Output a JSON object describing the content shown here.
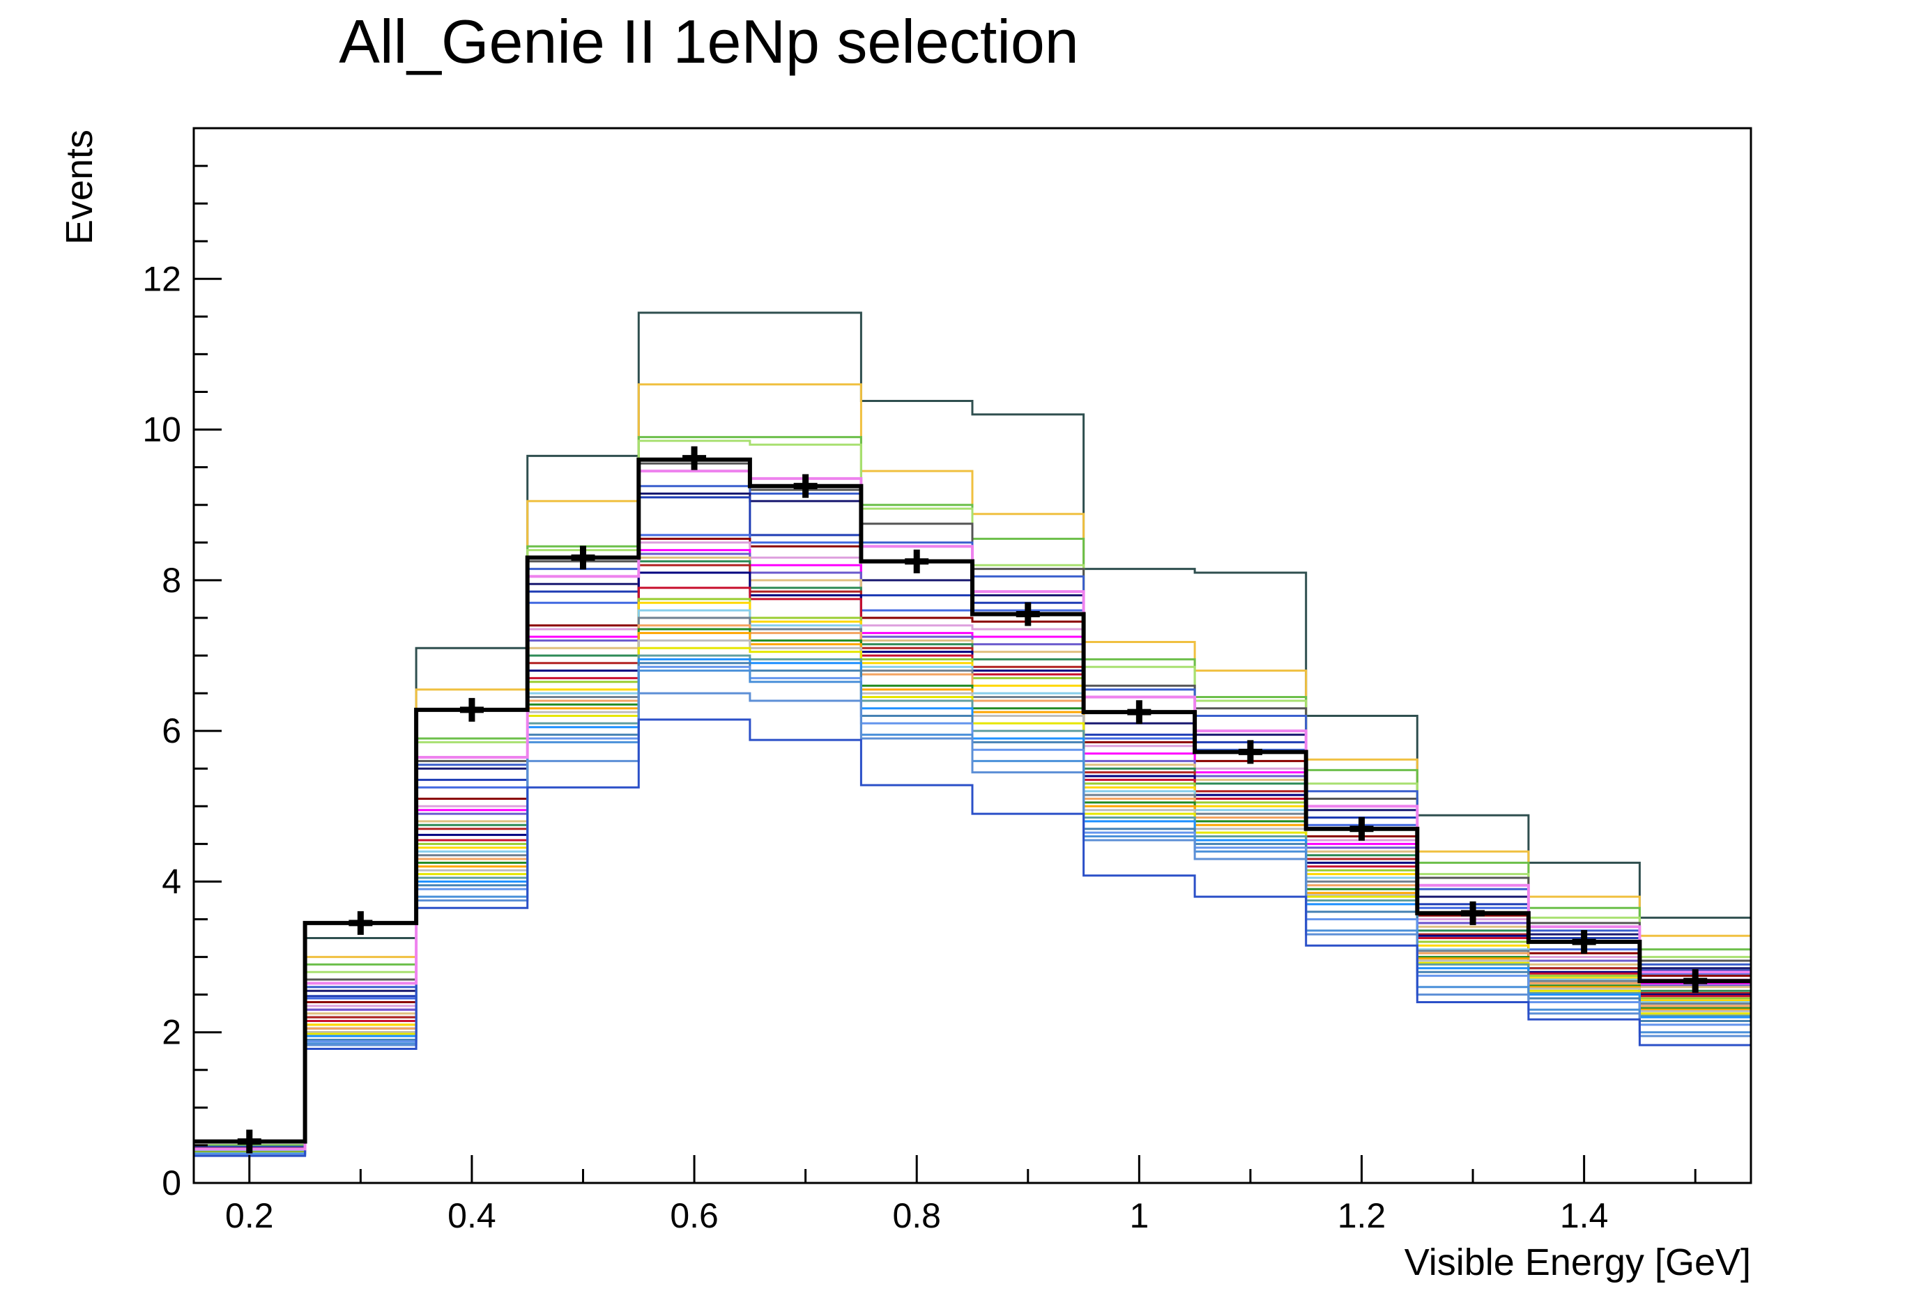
{
  "chart_data": {
    "type": "histogram",
    "title": "All_Genie II 1eNp selection",
    "xlabel": "Visible Energy [GeV]",
    "ylabel": "Events",
    "xlim": [
      0.15,
      1.55
    ],
    "ylim": [
      0,
      14
    ],
    "xticks": [
      {
        "value": 0.2,
        "label": "0.2"
      },
      {
        "value": 0.4,
        "label": "0.4"
      },
      {
        "value": 0.6,
        "label": "0.6"
      },
      {
        "value": 0.8,
        "label": "0.8"
      },
      {
        "value": 1.0,
        "label": "1"
      },
      {
        "value": 1.2,
        "label": "1.2"
      },
      {
        "value": 1.4,
        "label": "1.4"
      }
    ],
    "yticks": [
      {
        "value": 0,
        "label": "0"
      },
      {
        "value": 2,
        "label": "2"
      },
      {
        "value": 4,
        "label": "4"
      },
      {
        "value": 6,
        "label": "6"
      },
      {
        "value": 8,
        "label": "8"
      },
      {
        "value": 10,
        "label": "10"
      },
      {
        "value": 12,
        "label": "12"
      }
    ],
    "bin_edges": [
      0.15,
      0.25,
      0.35,
      0.45,
      0.55,
      0.65,
      0.75,
      0.85,
      0.95,
      1.05,
      1.15,
      1.25,
      1.35,
      1.45,
      1.55
    ],
    "cv": {
      "color": "#000000",
      "values": [
        0.55,
        3.45,
        6.28,
        8.3,
        9.6,
        9.25,
        8.25,
        7.55,
        6.25,
        5.72,
        4.7,
        3.58,
        3.2,
        2.68
      ]
    },
    "cv_points": {
      "color": "#000000",
      "x": [
        0.2,
        0.3,
        0.4,
        0.5,
        0.6,
        0.7,
        0.8,
        0.9,
        1.0,
        1.1,
        1.2,
        1.3,
        1.4,
        1.5
      ],
      "y": [
        0.55,
        3.45,
        6.28,
        8.3,
        9.62,
        9.25,
        8.25,
        7.55,
        6.25,
        5.72,
        4.7,
        3.58,
        3.2,
        2.68
      ]
    },
    "highlight": {
      "color": "#ee82ee",
      "values": [
        0.45,
        2.65,
        5.65,
        8.05,
        9.45,
        9.35,
        8.45,
        7.85,
        6.45,
        6.0,
        5.0,
        3.95,
        3.4,
        2.8
      ]
    },
    "universes": [
      {
        "color": "#2f4f4f",
        "values": [
          0.55,
          3.25,
          7.1,
          9.65,
          11.55,
          11.55,
          10.38,
          10.2,
          8.15,
          8.1,
          6.2,
          4.88,
          4.25,
          3.52
        ]
      },
      {
        "color": "#f0c040",
        "values": [
          0.5,
          3.0,
          6.55,
          9.05,
          10.6,
          10.6,
          9.45,
          8.88,
          7.18,
          6.8,
          5.62,
          4.4,
          3.8,
          3.28
        ]
      },
      {
        "color": "#6cbf4a",
        "values": [
          0.5,
          2.9,
          5.9,
          8.45,
          9.9,
          9.9,
          9.0,
          8.55,
          6.95,
          6.45,
          5.48,
          4.25,
          3.65,
          3.1
        ]
      },
      {
        "color": "#a8e070",
        "values": [
          0.48,
          2.8,
          5.85,
          8.4,
          9.85,
          9.8,
          8.95,
          8.2,
          6.85,
          6.4,
          5.3,
          4.1,
          3.52,
          3.0
        ]
      },
      {
        "color": "#555555",
        "values": [
          0.48,
          2.7,
          5.6,
          8.25,
          9.55,
          9.2,
          8.75,
          8.15,
          6.6,
          6.3,
          5.1,
          4.05,
          3.45,
          2.95
        ]
      },
      {
        "color": "#3a5fcd",
        "values": [
          0.48,
          2.6,
          5.55,
          8.15,
          9.25,
          9.15,
          8.5,
          8.05,
          6.55,
          6.2,
          5.2,
          3.9,
          3.35,
          2.9
        ]
      },
      {
        "color": "#191970",
        "values": [
          0.47,
          2.55,
          5.5,
          7.95,
          9.15,
          9.05,
          8.0,
          7.8,
          6.1,
          5.95,
          4.95,
          3.8,
          3.3,
          2.85
        ]
      },
      {
        "color": "#1e3cb4",
        "values": [
          0.47,
          2.48,
          5.35,
          7.85,
          9.1,
          8.6,
          7.8,
          7.7,
          5.95,
          5.85,
          4.85,
          3.7,
          3.25,
          2.82
        ]
      },
      {
        "color": "#4169e1",
        "values": [
          0.46,
          2.45,
          5.25,
          7.7,
          8.6,
          8.5,
          7.6,
          7.6,
          5.9,
          5.75,
          4.75,
          3.65,
          3.1,
          2.78
        ]
      },
      {
        "color": "#8b0000",
        "values": [
          0.46,
          2.4,
          5.1,
          7.4,
          8.55,
          8.45,
          7.5,
          7.45,
          5.85,
          5.6,
          4.6,
          3.55,
          3.05,
          2.75
        ]
      },
      {
        "color": "#dda0dd",
        "values": [
          0.45,
          2.35,
          5.0,
          7.35,
          8.5,
          8.3,
          7.4,
          7.35,
          5.8,
          5.5,
          4.55,
          3.5,
          3.0,
          2.7
        ]
      },
      {
        "color": "#ff00ff",
        "values": [
          0.45,
          2.3,
          4.95,
          7.25,
          8.4,
          8.2,
          7.3,
          7.25,
          5.7,
          5.45,
          4.5,
          3.45,
          2.95,
          2.65
        ]
      },
      {
        "color": "#6a5acd",
        "values": [
          0.44,
          2.3,
          4.9,
          7.2,
          8.35,
          8.1,
          7.25,
          7.15,
          5.6,
          5.4,
          4.45,
          3.45,
          2.95,
          2.62
        ]
      },
      {
        "color": "#e0c080",
        "values": [
          0.44,
          2.25,
          4.8,
          7.1,
          8.3,
          8.0,
          7.2,
          7.05,
          5.55,
          5.35,
          4.4,
          3.4,
          2.9,
          2.6
        ]
      },
      {
        "color": "#2e8b57",
        "values": [
          0.44,
          2.2,
          4.75,
          7.0,
          8.25,
          7.9,
          7.15,
          6.95,
          5.5,
          5.3,
          4.35,
          3.35,
          2.85,
          2.55
        ]
      },
      {
        "color": "#b22222",
        "values": [
          0.43,
          2.2,
          4.7,
          6.9,
          8.2,
          7.85,
          7.1,
          6.85,
          5.45,
          5.2,
          4.3,
          3.3,
          2.85,
          2.52
        ]
      },
      {
        "color": "#000080",
        "values": [
          0.43,
          2.15,
          4.62,
          6.8,
          8.1,
          7.8,
          7.05,
          6.8,
          5.4,
          5.15,
          4.25,
          3.28,
          2.8,
          2.5
        ]
      },
      {
        "color": "#c8102e",
        "values": [
          0.43,
          2.15,
          4.55,
          6.7,
          7.9,
          7.75,
          7.0,
          6.75,
          5.35,
          5.1,
          4.2,
          3.25,
          2.78,
          2.48
        ]
      },
      {
        "color": "#9acd32",
        "values": [
          0.42,
          2.1,
          4.5,
          6.65,
          7.75,
          7.5,
          6.95,
          6.7,
          5.3,
          5.05,
          4.15,
          3.2,
          2.75,
          2.45
        ]
      },
      {
        "color": "#ffd700",
        "values": [
          0.42,
          2.1,
          4.45,
          6.55,
          7.7,
          7.45,
          6.9,
          6.6,
          5.25,
          5.0,
          4.1,
          3.15,
          2.72,
          2.42
        ]
      },
      {
        "color": "#87ceeb",
        "values": [
          0.42,
          2.05,
          4.4,
          6.5,
          7.6,
          7.4,
          6.85,
          6.5,
          5.2,
          4.95,
          4.05,
          3.1,
          2.7,
          2.4
        ]
      },
      {
        "color": "#708090",
        "values": [
          0.41,
          2.05,
          4.35,
          6.45,
          7.5,
          7.35,
          6.8,
          6.45,
          5.15,
          4.9,
          4.0,
          3.08,
          2.68,
          2.38
        ]
      },
      {
        "color": "#f4a460",
        "values": [
          0.41,
          2.05,
          4.3,
          6.4,
          7.4,
          7.3,
          6.75,
          6.4,
          5.1,
          4.85,
          3.95,
          3.05,
          2.65,
          2.35
        ]
      },
      {
        "color": "#228b22",
        "values": [
          0.41,
          2.0,
          4.25,
          6.35,
          7.35,
          7.2,
          6.6,
          6.3,
          5.05,
          4.8,
          3.9,
          3.0,
          2.62,
          2.32
        ]
      },
      {
        "color": "#ffa500",
        "values": [
          0.4,
          2.0,
          4.2,
          6.3,
          7.3,
          7.15,
          6.55,
          6.25,
          5.0,
          4.75,
          3.85,
          2.98,
          2.6,
          2.3
        ]
      },
      {
        "color": "#bdbdbd",
        "values": [
          0.4,
          2.0,
          4.15,
          6.25,
          7.2,
          7.1,
          6.5,
          6.2,
          4.95,
          4.7,
          3.82,
          2.95,
          2.58,
          2.28
        ]
      },
      {
        "color": "#e6e600",
        "values": [
          0.4,
          1.98,
          4.1,
          6.2,
          7.1,
          7.05,
          6.45,
          6.1,
          4.9,
          4.65,
          3.8,
          2.92,
          2.55,
          2.25
        ]
      },
      {
        "color": "#5f9ea0",
        "values": [
          0.39,
          1.95,
          4.05,
          6.1,
          7.0,
          6.95,
          6.4,
          6.0,
          4.85,
          4.6,
          3.75,
          2.9,
          2.52,
          2.22
        ]
      },
      {
        "color": "#1e90ff",
        "values": [
          0.39,
          1.95,
          4.0,
          6.05,
          6.95,
          6.9,
          6.3,
          5.9,
          4.8,
          4.55,
          3.7,
          2.85,
          2.5,
          2.2
        ]
      },
      {
        "color": "#4682b4",
        "values": [
          0.38,
          1.9,
          3.95,
          5.95,
          6.9,
          6.8,
          6.2,
          5.85,
          4.7,
          4.5,
          3.6,
          2.8,
          2.45,
          2.15
        ]
      },
      {
        "color": "#6495ed",
        "values": [
          0.38,
          1.88,
          3.9,
          5.9,
          6.85,
          6.7,
          6.1,
          5.75,
          4.65,
          4.45,
          3.5,
          2.75,
          2.4,
          2.1
        ]
      },
      {
        "color": "#4a90d9",
        "values": [
          0.37,
          1.85,
          3.8,
          5.85,
          6.8,
          6.65,
          5.95,
          5.6,
          4.6,
          4.4,
          3.35,
          2.6,
          2.3,
          2.0
        ]
      },
      {
        "color": "#5c8fd6",
        "values": [
          0.37,
          1.83,
          3.75,
          5.6,
          6.5,
          6.4,
          5.9,
          5.45,
          4.55,
          4.3,
          3.3,
          2.5,
          2.25,
          1.95
        ]
      },
      {
        "color": "#2b50c8",
        "values": [
          0.36,
          1.78,
          3.65,
          5.25,
          6.15,
          5.88,
          5.28,
          4.9,
          4.08,
          3.8,
          3.15,
          2.4,
          2.17,
          1.83
        ]
      }
    ]
  }
}
